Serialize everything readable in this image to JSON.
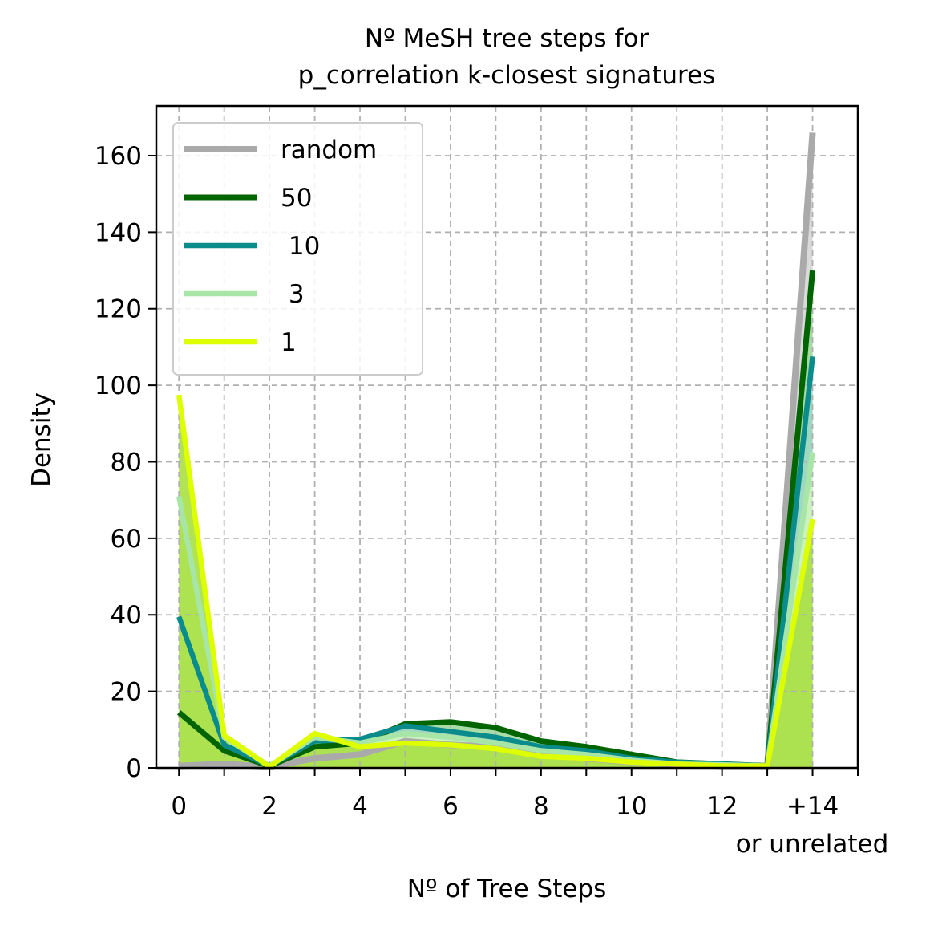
{
  "chart_data": {
    "type": "line",
    "title_lines": [
      "Nº MeSH tree steps for",
      "p_correlation k-closest signatures"
    ],
    "xlabel": "Nº of Tree Steps",
    "ylabel": "Density",
    "x": [
      0,
      1,
      2,
      3,
      4,
      5,
      6,
      7,
      8,
      9,
      10,
      11,
      12,
      13,
      14
    ],
    "xlim": [
      -0.5,
      15
    ],
    "ylim": [
      0,
      173
    ],
    "x_ticks": [
      {
        "value": 0,
        "label": "0"
      },
      {
        "value": 2,
        "label": "2"
      },
      {
        "value": 4,
        "label": "4"
      },
      {
        "value": 6,
        "label": "6"
      },
      {
        "value": 8,
        "label": "8"
      },
      {
        "value": 10,
        "label": "10"
      },
      {
        "value": 12,
        "label": "12"
      },
      {
        "value": 14,
        "label": "+14"
      }
    ],
    "x_tick_extra_label": "or unrelated",
    "y_ticks": [
      0,
      20,
      40,
      60,
      80,
      100,
      120,
      140,
      160
    ],
    "grid": true,
    "legend_position": "upper left",
    "series": [
      {
        "name": "random",
        "color": "#aaaaaa",
        "fill_color": "#d6d6d6",
        "values": [
          0.5,
          1,
          0.3,
          2.5,
          3.5,
          7,
          6,
          5.5,
          3.5,
          2.5,
          1.5,
          1,
          0.5,
          0.5,
          166
        ]
      },
      {
        "name": "50",
        "color": "#006400",
        "fill_color": "#9fd99f",
        "values": [
          14.5,
          4.5,
          0.5,
          5.5,
          6.5,
          11.5,
          12,
          10.5,
          7,
          5.5,
          3.5,
          1.5,
          1,
          0.5,
          130
        ]
      },
      {
        "name": " 10",
        "color": "#0a8c8c",
        "fill_color": "#a0d6c4",
        "values": [
          39.5,
          6,
          0.5,
          7,
          7.5,
          11,
          9.5,
          8,
          5.5,
          4.5,
          2.5,
          1.5,
          1,
          0.5,
          107.5
        ]
      },
      {
        "name": " 3",
        "color": "#a8e6a8",
        "fill_color": "#d0f5c0",
        "values": [
          71,
          8,
          0.5,
          8,
          6.5,
          9,
          8,
          6.5,
          4.5,
          3.5,
          2,
          1,
          0.8,
          0.5,
          82.5
        ]
      },
      {
        "name": "1",
        "color": "#ddff00",
        "fill_color": "#a8e043",
        "values": [
          97.5,
          8.5,
          0.3,
          9,
          5.5,
          6.5,
          6,
          5,
          3,
          2.5,
          1.5,
          1,
          0.5,
          0.5,
          65
        ]
      }
    ]
  }
}
